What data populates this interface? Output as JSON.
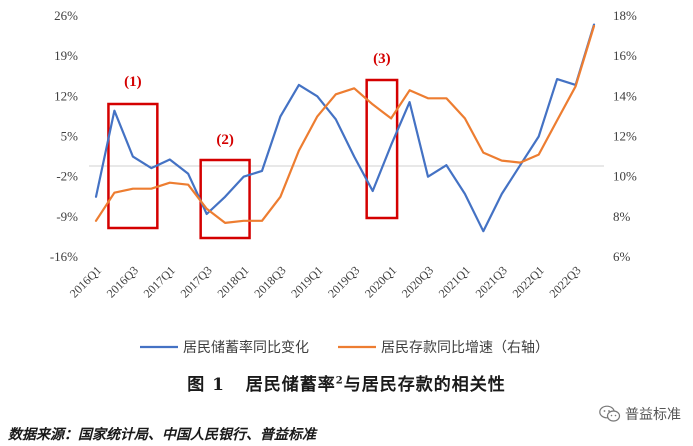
{
  "chart_data": {
    "type": "line",
    "x": [
      "2016Q1",
      "2016Q2",
      "2016Q3",
      "2016Q4",
      "2017Q1",
      "2017Q2",
      "2017Q3",
      "2017Q4",
      "2018Q1",
      "2018Q2",
      "2018Q3",
      "2018Q4",
      "2019Q1",
      "2019Q2",
      "2019Q3",
      "2019Q4",
      "2020Q1",
      "2020Q2",
      "2020Q3",
      "2020Q4",
      "2021Q1",
      "2021Q2",
      "2021Q3",
      "2021Q4",
      "2022Q1",
      "2022Q2",
      "2022Q3",
      "2022Q4"
    ],
    "x_tick_labels": [
      "2016Q1",
      "2016Q3",
      "2017Q1",
      "2017Q3",
      "2018Q1",
      "2018Q3",
      "2019Q1",
      "2019Q3",
      "2020Q1",
      "2020Q3",
      "2021Q1",
      "2021Q3",
      "2022Q1",
      "2022Q3"
    ],
    "left_axis": {
      "ticks": [
        "26%",
        "19%",
        "12%",
        "5%",
        "-2%",
        "-9%",
        "-16%"
      ],
      "range": [
        -16,
        26
      ]
    },
    "right_axis": {
      "ticks": [
        "18%",
        "16%",
        "14%",
        "12%",
        "10%",
        "8%",
        "6%"
      ],
      "range": [
        6,
        18
      ]
    },
    "series": [
      {
        "name": "居民储蓄率同比变化",
        "axis": "left",
        "color": "#4472c4",
        "values": [
          -5.5,
          9.5,
          1.5,
          -0.5,
          1.0,
          -1.5,
          -8.5,
          -5.5,
          -2.0,
          -1.0,
          8.5,
          14.0,
          12.0,
          8.0,
          1.5,
          -4.5,
          3.5,
          11.0,
          -2.0,
          0.0,
          -5.0,
          -11.5,
          -5.0,
          0.0,
          5.0,
          15.0,
          14.0,
          24.5
        ]
      },
      {
        "name": "居民存款同比增速（右轴）",
        "axis": "right",
        "color": "#ed7d31",
        "values": [
          7.8,
          9.2,
          9.4,
          9.4,
          9.7,
          9.6,
          8.4,
          7.7,
          7.8,
          7.8,
          9.0,
          11.3,
          13.0,
          14.1,
          14.4,
          13.6,
          12.9,
          14.3,
          13.9,
          13.9,
          12.9,
          11.2,
          10.8,
          10.7,
          11.1,
          12.8,
          14.5,
          17.5
        ]
      }
    ],
    "annotations": [
      {
        "label": "(1)",
        "from": "2016Q2",
        "to": "2016Q4"
      },
      {
        "label": "(2)",
        "from": "2017Q3",
        "to": "2018Q1"
      },
      {
        "label": "(3)",
        "from": "2019Q4",
        "to": "2020Q1"
      }
    ],
    "legend_position": "bottom",
    "grid": false
  },
  "caption": {
    "fig": "图 1",
    "text_before": "居民储蓄率",
    "sup": "2",
    "text_after": "与居民存款的相关性"
  },
  "source": "数据来源：国家统计局、中国人民银行、普益标准",
  "watermark": {
    "icon": "wechat-icon",
    "text": "普益标准"
  }
}
